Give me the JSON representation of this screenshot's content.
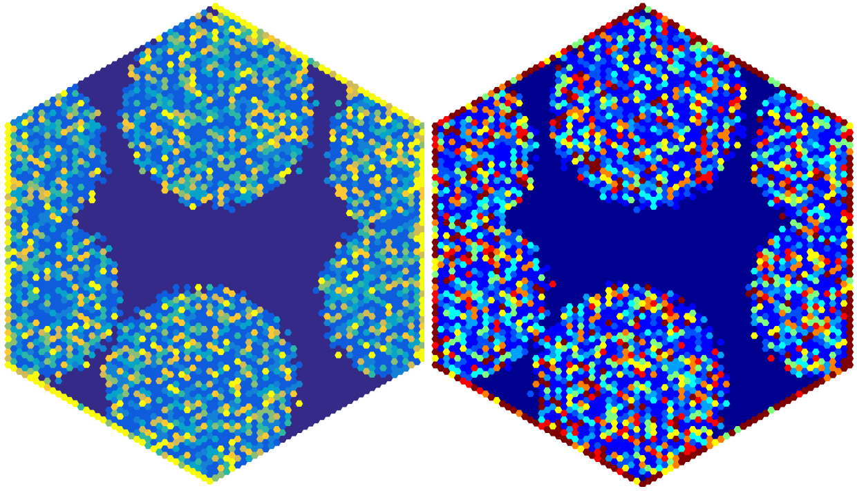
{
  "chart_data": [
    {
      "type": "heatmap",
      "title": "",
      "xlabel": "",
      "ylabel": "",
      "grid": false,
      "legend": "none",
      "cell_shape": "hexagon",
      "colormap": "parula",
      "colors": [
        "#352a87",
        "#0f5cdd",
        "#1481d6",
        "#06a4ca",
        "#2eb7a4",
        "#87bf77",
        "#d1bb59",
        "#fec832",
        "#f9fb0e"
      ],
      "background_color": "#352a87",
      "regions": [
        "top-center",
        "top-left",
        "top-right",
        "middle-left",
        "middle-right",
        "bottom-center"
      ],
      "boundary_color": "#f9fb0e"
    },
    {
      "type": "heatmap",
      "title": "",
      "xlabel": "",
      "ylabel": "",
      "grid": false,
      "legend": "none",
      "cell_shape": "hexagon",
      "colormap": "jet",
      "colors": [
        "#00008f",
        "#0000ff",
        "#0050ff",
        "#00a0ff",
        "#00ffff",
        "#80ff80",
        "#ffff00",
        "#ff8000",
        "#ff0000",
        "#800000"
      ],
      "background_color": "#00008f",
      "regions": [
        "top-center",
        "top-left",
        "top-right",
        "middle-left",
        "middle-right",
        "bottom-center"
      ],
      "boundary_color": "#800000"
    }
  ]
}
